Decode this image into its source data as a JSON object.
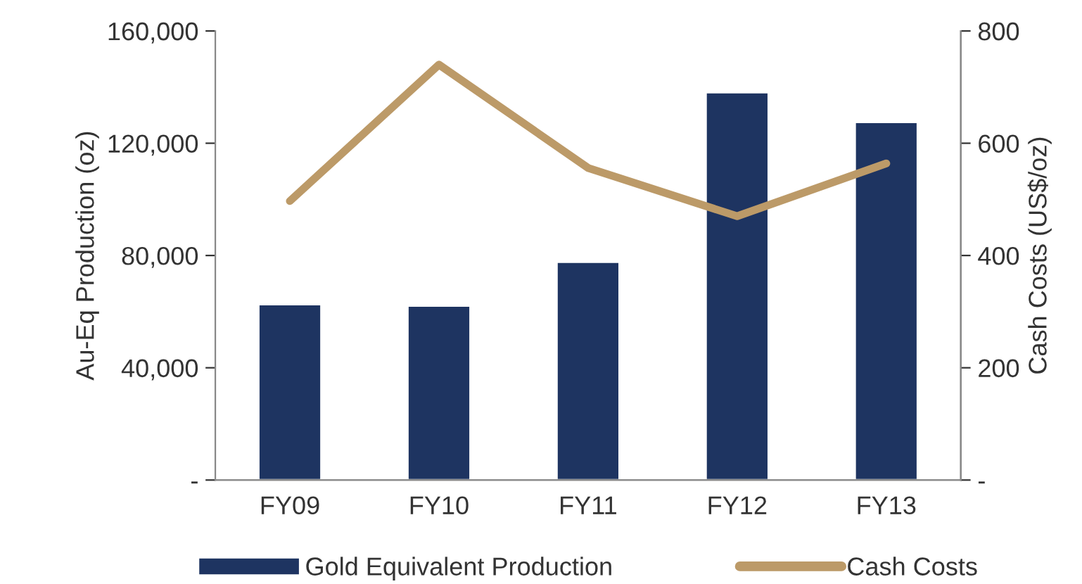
{
  "chart_data": {
    "type": "bar",
    "categories": [
      "FY09",
      "FY10",
      "FY11",
      "FY12",
      "FY13"
    ],
    "series": [
      {
        "name": "Gold Equivalent Production",
        "color": "#1e3461",
        "values": [
          62600,
          62100,
          77700,
          138100,
          127500
        ]
      },
      {
        "name": "Cash Costs",
        "type": "line",
        "axis": "y2",
        "color": "#bc9a68",
        "values": [
          497,
          740,
          556,
          470,
          564
        ]
      }
    ],
    "ylabel": "Au-Eq Production (oz)",
    "y2label": "Cash Costs (US$/oz)",
    "ylim": [
      0,
      160000
    ],
    "yticks": [
      {
        "value": 0,
        "label": "-"
      },
      {
        "value": 40000,
        "label": "40,000"
      },
      {
        "value": 80000,
        "label": "80,000"
      },
      {
        "value": 120000,
        "label": "120,000"
      },
      {
        "value": 160000,
        "label": "160,000"
      }
    ],
    "y2lim": [
      0,
      800
    ],
    "y2ticks": [
      {
        "value": 0,
        "label": "-"
      },
      200,
      400,
      600,
      800
    ],
    "grid": false,
    "legend": "bottom",
    "marker": "none",
    "line_style": "solid"
  }
}
